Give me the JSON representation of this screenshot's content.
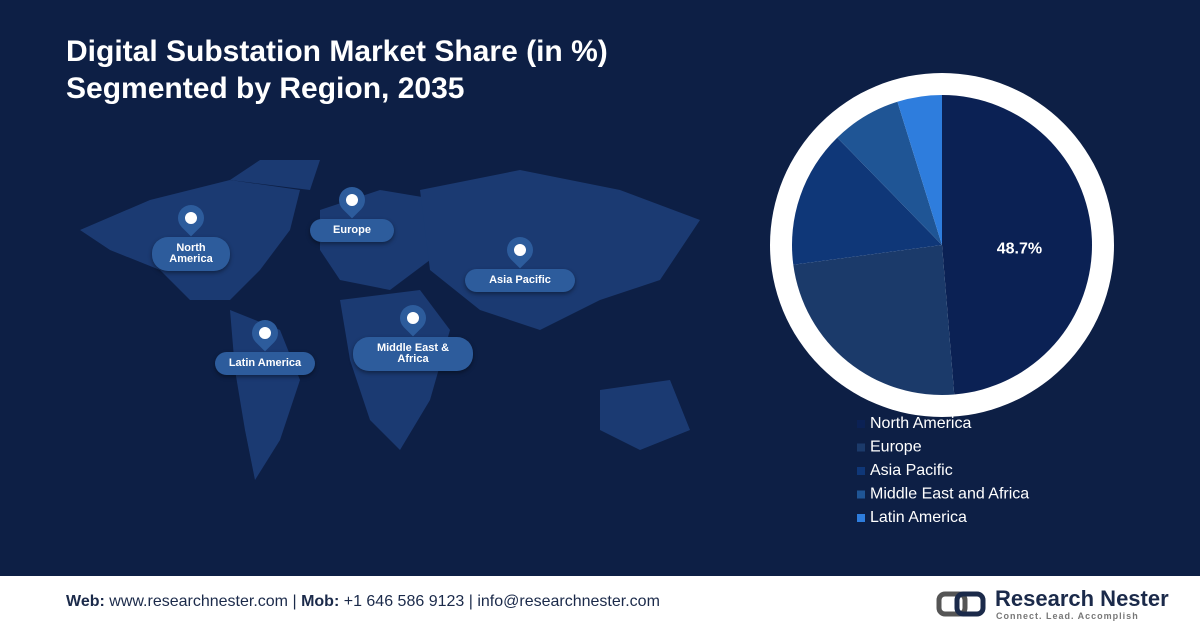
{
  "chart_data": {
    "type": "pie",
    "title": "Digital Substation Market Share (in %)",
    "subtitle": "Segmented by Region, 2035",
    "categories": [
      "North America",
      "Europe",
      "Asia Pacific",
      "Middle East and Africa",
      "Latin America"
    ],
    "values": [
      48.7,
      24.2,
      14.8,
      7.5,
      4.8
    ],
    "value_labels": [
      "48.7%",
      null,
      null,
      null,
      null
    ],
    "colors": [
      "#0b2154",
      "#1b3a6a",
      "#0f3778",
      "#1f5595",
      "#2e7ddd"
    ]
  },
  "map": {
    "pins": [
      "North America",
      "Europe",
      "Asia Pacific",
      "Latin America",
      "Middle East & Africa"
    ]
  },
  "footer": {
    "web_label": "Web:",
    "web": "www.researchnester.com",
    "separator": "|",
    "mob_label": "Mob:",
    "mob": "+1 646 586 9123",
    "email": "info@researchnester.com",
    "brand": "Research Nester",
    "tagline": "Connect. Lead. Accomplish"
  }
}
